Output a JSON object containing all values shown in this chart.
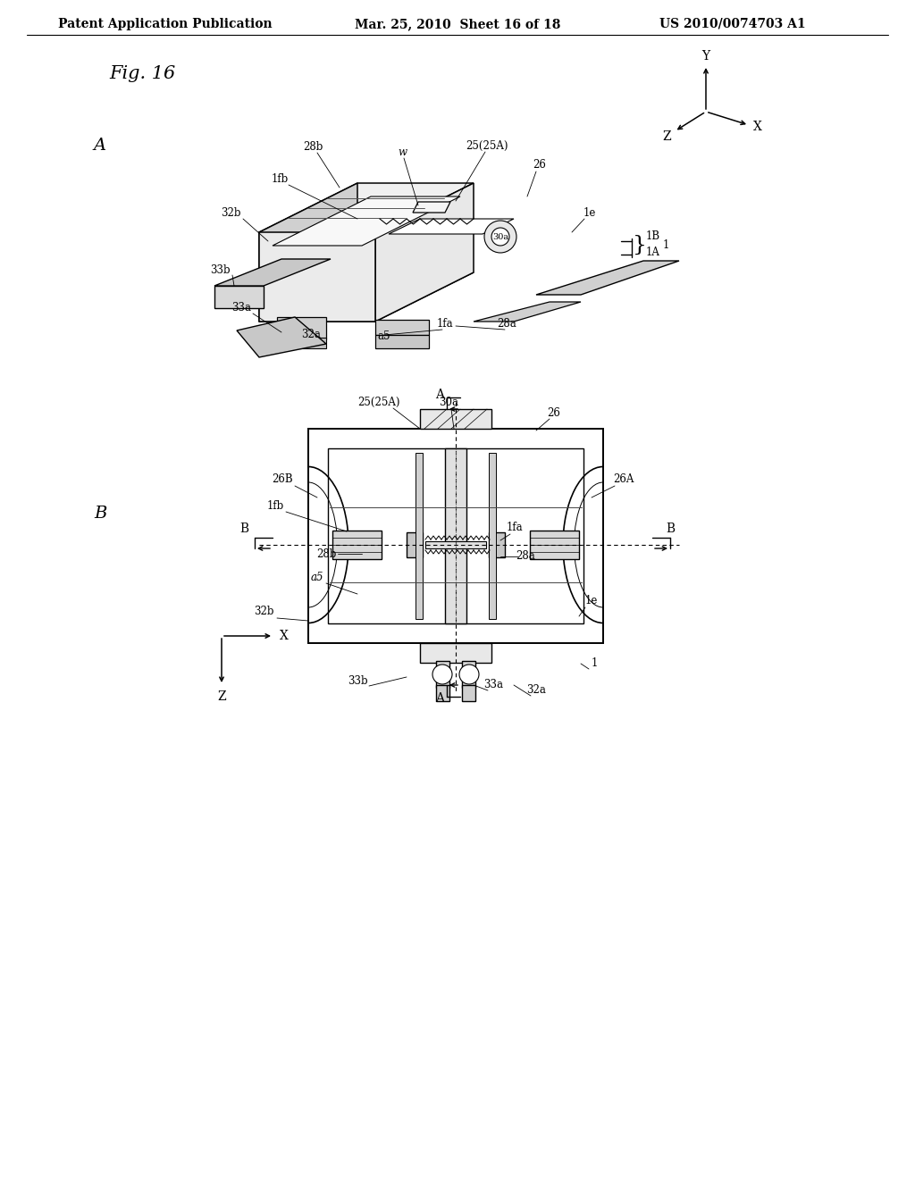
{
  "bg": "#ffffff",
  "header_left": "Patent Application Publication",
  "header_center": "Mar. 25, 2010  Sheet 16 of 18",
  "header_right": "US 2010/0074703 A1",
  "fig_label": "Fig. 16",
  "diagram_A_label": "A",
  "diagram_B_label": "B",
  "line_color": "#000000",
  "light_gray": "#d8d8d8",
  "mid_gray": "#b8b8b8",
  "dark_gray": "#909090"
}
